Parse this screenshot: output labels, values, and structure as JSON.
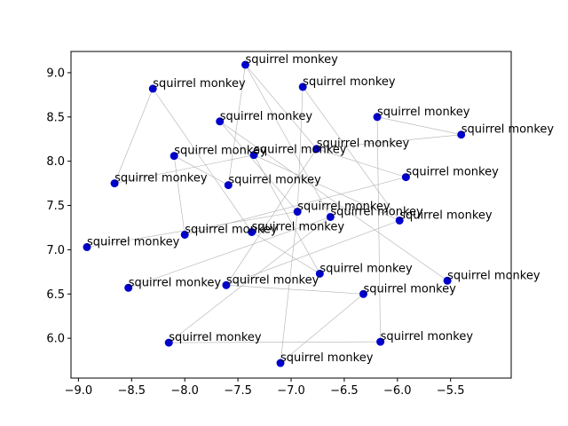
{
  "chart_data": {
    "type": "scatter",
    "title": "",
    "xlabel": "",
    "ylabel": "",
    "xlim": [
      -9.07,
      -4.93
    ],
    "ylim": [
      5.55,
      9.24
    ],
    "grid": false,
    "marker_color": "#0000cc",
    "edge_color": "#b0b0b0",
    "x_ticks": [
      -9.0,
      -8.5,
      -8.0,
      -7.5,
      -7.0,
      -6.5,
      -6.0,
      -5.5
    ],
    "x_tick_labels": [
      "−9.0",
      "−8.5",
      "−8.0",
      "−7.5",
      "−7.0",
      "−6.5",
      "−6.0",
      "−5.5"
    ],
    "y_ticks": [
      6.0,
      6.5,
      7.0,
      7.5,
      8.0,
      8.5,
      9.0
    ],
    "y_tick_labels": [
      "6.0",
      "6.5",
      "7.0",
      "7.5",
      "8.0",
      "8.5",
      "9.0"
    ],
    "points": [
      {
        "label": "squirrel monkey",
        "x": -7.43,
        "y": 9.09
      },
      {
        "label": "squirrel monkey",
        "x": -6.89,
        "y": 8.84
      },
      {
        "label": "squirrel monkey",
        "x": -8.3,
        "y": 8.82
      },
      {
        "label": "squirrel monkey",
        "x": -6.19,
        "y": 8.5
      },
      {
        "label": "squirrel monkey",
        "x": -7.67,
        "y": 8.45
      },
      {
        "label": "squirrel monkey",
        "x": -5.4,
        "y": 8.3
      },
      {
        "label": "squirrel monkey",
        "x": -6.76,
        "y": 8.14
      },
      {
        "label": "squirrel monkey",
        "x": -7.35,
        "y": 8.07
      },
      {
        "label": "squirrel monkey",
        "x": -8.1,
        "y": 8.06
      },
      {
        "label": "squirrel monkey",
        "x": -5.92,
        "y": 7.82
      },
      {
        "label": "squirrel monkey",
        "x": -8.66,
        "y": 7.75
      },
      {
        "label": "squirrel monkey",
        "x": -7.59,
        "y": 7.73
      },
      {
        "label": "squirrel monkey",
        "x": -6.94,
        "y": 7.43
      },
      {
        "label": "squirrel monkey",
        "x": -6.63,
        "y": 7.37
      },
      {
        "label": "squirrel monkey",
        "x": -5.98,
        "y": 7.33
      },
      {
        "label": "squirrel monkey",
        "x": -7.37,
        "y": 7.2
      },
      {
        "label": "squirrel monkey",
        "x": -8.0,
        "y": 7.17
      },
      {
        "label": "squirrel monkey",
        "x": -8.92,
        "y": 7.03
      },
      {
        "label": "squirrel monkey",
        "x": -6.73,
        "y": 6.73
      },
      {
        "label": "squirrel monkey",
        "x": -5.53,
        "y": 6.65
      },
      {
        "label": "squirrel monkey",
        "x": -7.61,
        "y": 6.6
      },
      {
        "label": "squirrel monkey",
        "x": -8.53,
        "y": 6.57
      },
      {
        "label": "squirrel monkey",
        "x": -6.32,
        "y": 6.5
      },
      {
        "label": "squirrel monkey",
        "x": -6.16,
        "y": 5.96
      },
      {
        "label": "squirrel monkey",
        "x": -8.15,
        "y": 5.95
      },
      {
        "label": "squirrel monkey",
        "x": -7.1,
        "y": 5.72
      }
    ],
    "edges": [
      [
        0,
        13
      ],
      [
        0,
        11
      ],
      [
        0,
        6
      ],
      [
        1,
        12
      ],
      [
        1,
        14
      ],
      [
        2,
        10
      ],
      [
        2,
        15
      ],
      [
        3,
        5
      ],
      [
        3,
        23
      ],
      [
        4,
        19
      ],
      [
        4,
        12
      ],
      [
        5,
        6
      ],
      [
        6,
        20
      ],
      [
        6,
        9
      ],
      [
        7,
        18
      ],
      [
        7,
        14
      ],
      [
        7,
        10
      ],
      [
        8,
        11
      ],
      [
        8,
        16
      ],
      [
        9,
        16
      ],
      [
        12,
        17
      ],
      [
        12,
        25
      ],
      [
        13,
        21
      ],
      [
        13,
        24
      ],
      [
        14,
        20
      ],
      [
        15,
        18
      ],
      [
        22,
        20
      ],
      [
        22,
        25
      ],
      [
        23,
        24
      ]
    ]
  }
}
